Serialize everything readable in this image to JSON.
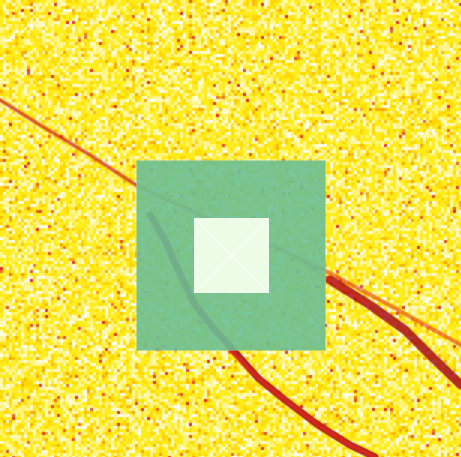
{
  "image": {
    "description_kind": "noisy yellow field with dark red streaks and a square selection overlay",
    "background_color": "#ffec1a",
    "noise_colors": [
      "#ffffff",
      "#fff6a0",
      "#ffd400",
      "#f6a300",
      "#e0282a"
    ],
    "streak_color": "#a0001a",
    "streak_highlight": "#e22a1a"
  },
  "overlay": {
    "outer_color": "#6cbf95",
    "outer_opacity": 0.9,
    "inner_color": "#f3ffea",
    "inner_opacity": 0.95,
    "inner_diagonal_color": "#ffffff"
  }
}
